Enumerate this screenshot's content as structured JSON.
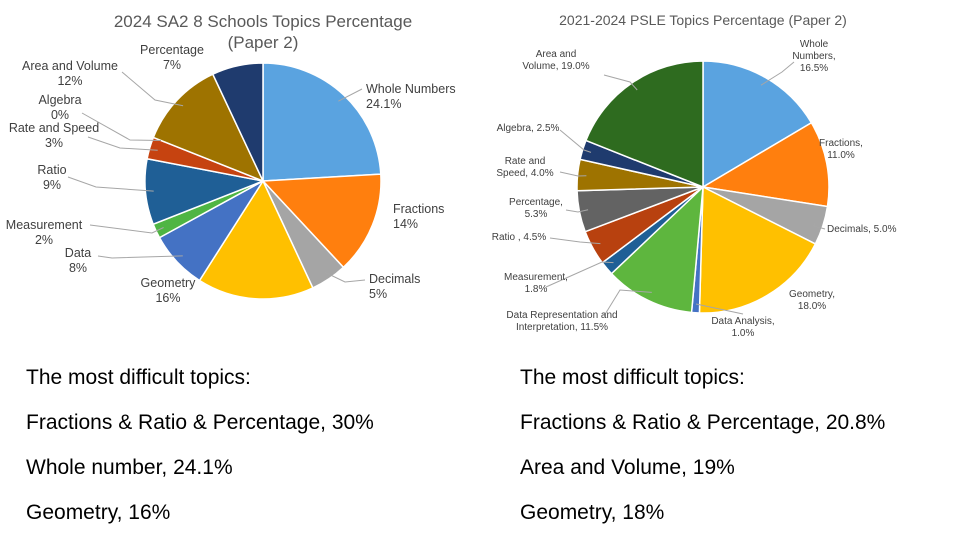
{
  "chart_data": [
    {
      "type": "pie",
      "title": "2024 SA2 8 Schools Topics Percentage",
      "subtitle": "(Paper 2)",
      "slices": [
        {
          "label": "Whole Numbers",
          "value_text": "24.1%",
          "value": 24.1,
          "color": "#5aa3e0"
        },
        {
          "label": "Fractions",
          "value_text": "14%",
          "value": 14,
          "color": "#ff7f0e"
        },
        {
          "label": "Decimals",
          "value_text": "5%",
          "value": 5,
          "color": "#a5a5a5"
        },
        {
          "label": "Geometry",
          "value_text": "16%",
          "value": 16,
          "color": "#ffc000"
        },
        {
          "label": "Data",
          "value_text": "8%",
          "value": 8,
          "color": "#4472c4"
        },
        {
          "label": "Measurement",
          "value_text": "2%",
          "value": 2,
          "color": "#4fb543"
        },
        {
          "label": "Ratio",
          "value_text": "9%",
          "value": 9,
          "color": "#1f5f96"
        },
        {
          "label": "Rate and Speed",
          "value_text": "3%",
          "value": 3,
          "color": "#c64310"
        },
        {
          "label": "Algebra",
          "value_text": "0%",
          "value": 0,
          "color": "#8c8c8c"
        },
        {
          "label": "Area and Volume",
          "value_text": "12%",
          "value": 12,
          "color": "#9e7300"
        },
        {
          "label": "Percentage",
          "value_text": "7%",
          "value": 7,
          "color": "#1f3b6e"
        }
      ]
    },
    {
      "type": "pie",
      "title": "2021-2024 PSLE Topics Percentage (Paper 2)",
      "slices": [
        {
          "label": "Whole Numbers, 16.5%",
          "value": 16.5,
          "color": "#5aa3e0"
        },
        {
          "label": "Fractions, 11.0%",
          "value": 11.0,
          "color": "#ff7f0e"
        },
        {
          "label": "Decimals, 5.0%",
          "value": 5.0,
          "color": "#a5a5a5"
        },
        {
          "label": "Geometry, 18.0%",
          "value": 18.0,
          "color": "#ffc000"
        },
        {
          "label": "Data Analysis, 1.0%",
          "value": 1.0,
          "color": "#4472c4"
        },
        {
          "label": "Data Representation and Interpretation, 11.5%",
          "value": 11.5,
          "color": "#5eb63e"
        },
        {
          "label": "Measurement, 1.8%",
          "value": 1.8,
          "color": "#1f5f96"
        },
        {
          "label": "Ratio , 4.5%",
          "value": 4.5,
          "color": "#b8410f"
        },
        {
          "label": "Percentage, 5.3%",
          "value": 5.3,
          "color": "#636363"
        },
        {
          "label": "Rate and Speed, 4.0%",
          "value": 4.0,
          "color": "#9e7300"
        },
        {
          "label": "Algebra, 2.5%",
          "value": 2.5,
          "color": "#1f3b6e"
        },
        {
          "label": "Area and Volume, 19.0%",
          "value": 19.0,
          "color": "#2e6b1f"
        }
      ]
    }
  ],
  "summary_left": {
    "heading": "The most difficult topics:",
    "items": [
      "Fractions & Ratio & Percentage, 30%",
      "Whole number, 24.1%",
      "Geometry, 16%"
    ]
  },
  "summary_right": {
    "heading": "The most difficult topics:",
    "items": [
      "Fractions & Ratio & Percentage, 20.8%",
      "Area and Volume, 19%",
      "Geometry, 18%"
    ]
  }
}
